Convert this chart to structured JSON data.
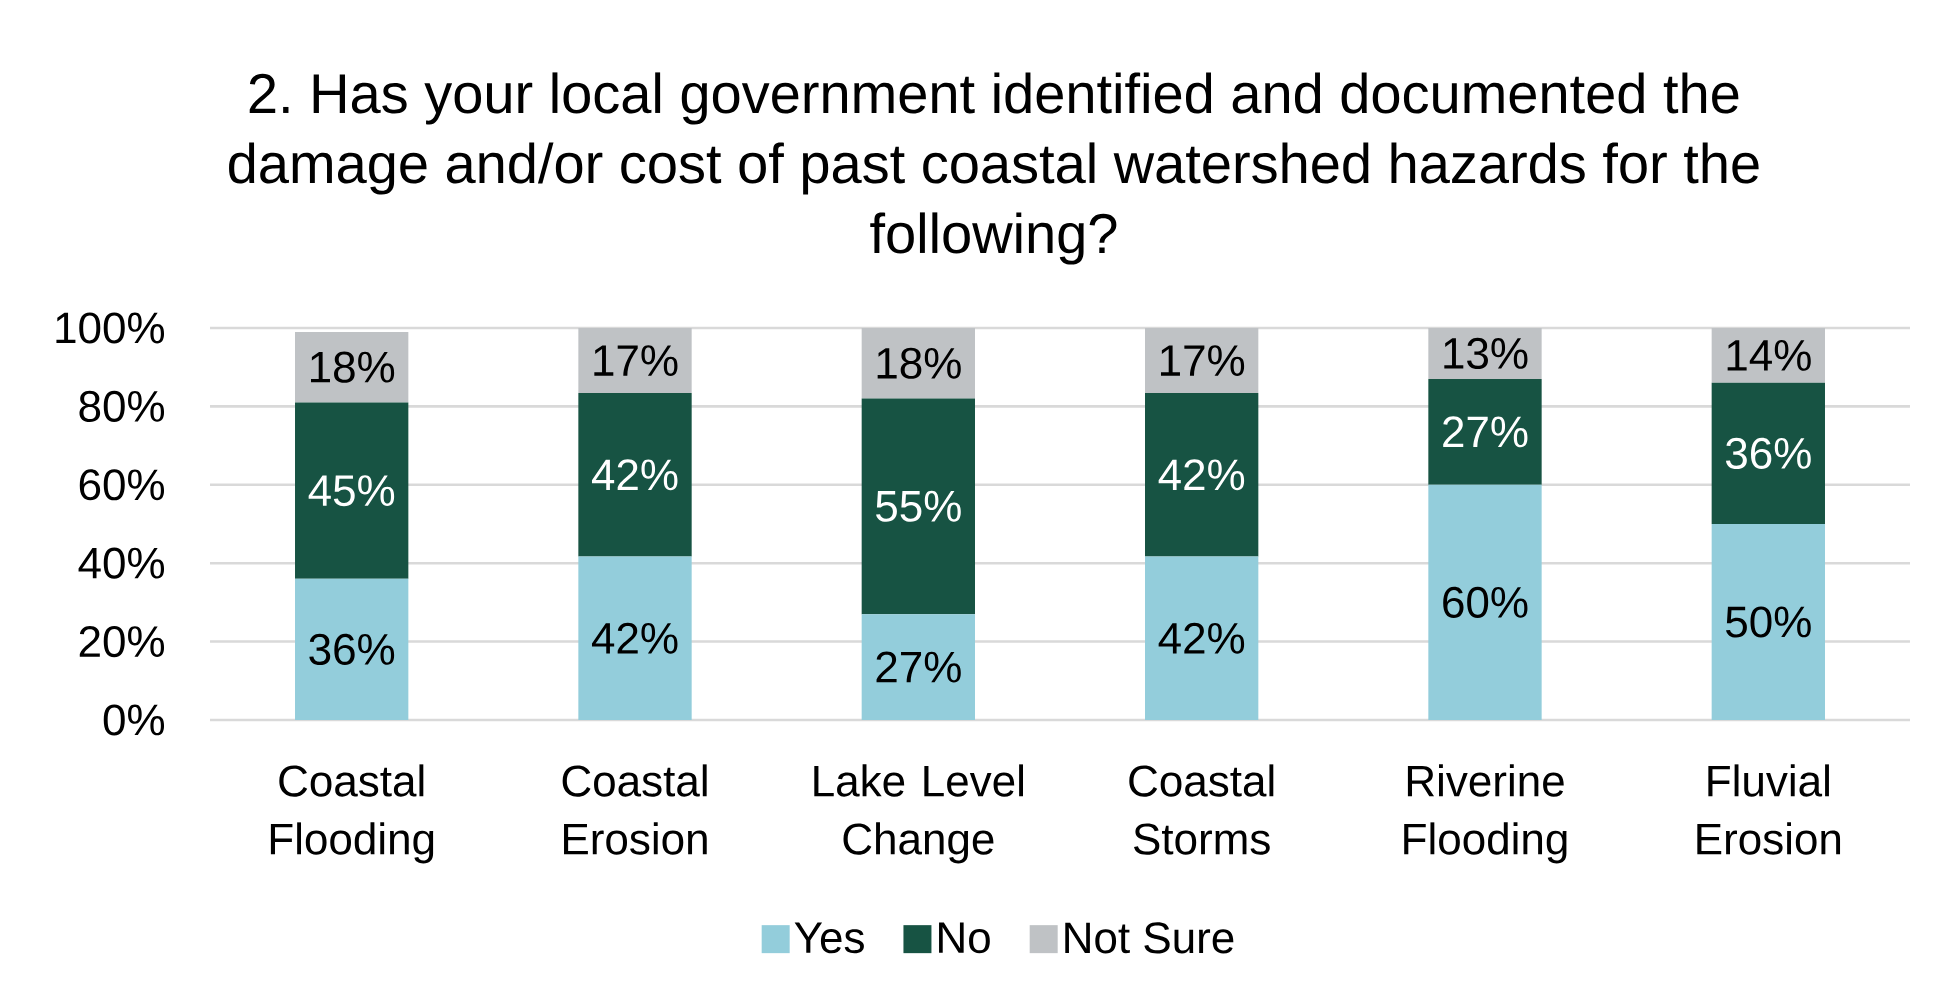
{
  "chart_data": {
    "type": "bar",
    "title": "2. Has your local government identified and documented the damage and/or cost of past coastal watershed hazards for the following?",
    "categories": [
      "Coastal Flooding",
      "Coastal Erosion",
      "Lake Level Change",
      "Coastal Storms",
      "Riverine Flooding",
      "Fluvial Erosion"
    ],
    "series": [
      {
        "name": "Yes",
        "color": "#93cddb",
        "values": [
          36,
          41.7,
          27,
          41.7,
          60,
          50
        ],
        "value_labels": [
          "36%",
          "42%",
          "27%",
          "42%",
          "60%",
          "50%"
        ]
      },
      {
        "name": "No",
        "color": "#175343",
        "values": [
          45,
          41.7,
          55,
          41.7,
          27,
          36
        ],
        "value_labels": [
          "45%",
          "42%",
          "55%",
          "42%",
          "27%",
          "36%"
        ]
      },
      {
        "name": "Not Sure",
        "color": "#bfc2c5",
        "values": [
          18,
          16.6,
          18,
          16.6,
          13,
          14
        ],
        "value_labels": [
          "18%",
          "17%",
          "18%",
          "17%",
          "13%",
          "14%"
        ]
      }
    ],
    "stacked": true,
    "ylim": [
      0,
      100
    ],
    "yticks": [
      {
        "value": 0,
        "label": "0%"
      },
      {
        "value": 20,
        "label": "20%"
      },
      {
        "value": 40,
        "label": "40%"
      },
      {
        "value": 60,
        "label": "60%"
      },
      {
        "value": 80,
        "label": "80%"
      },
      {
        "value": 100,
        "label": "100%"
      }
    ],
    "grid": "y",
    "legend": "bottom"
  }
}
